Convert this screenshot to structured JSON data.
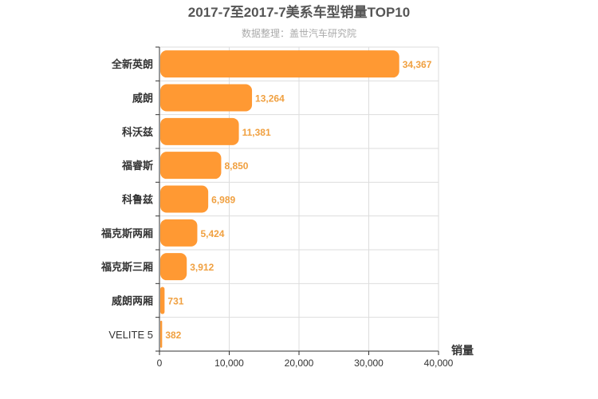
{
  "chart_data": {
    "type": "bar",
    "orientation": "horizontal",
    "title": "2017-7至2017-7美系车型销量TOP10",
    "subtitle": "数据整理：盖世汽车研究院",
    "xlabel": "销量",
    "ylabel": "",
    "categories": [
      "全新英朗",
      "威朗",
      "科沃兹",
      "福睿斯",
      "科鲁兹",
      "福克斯两厢",
      "福克斯三厢",
      "威朗两厢",
      "VELITE 5"
    ],
    "values": [
      34367,
      13264,
      11381,
      8850,
      6989,
      5424,
      3912,
      731,
      382
    ],
    "value_labels": [
      "34,367",
      "13,264",
      "11,381",
      "8,850",
      "6,989",
      "5,424",
      "3,912",
      "731",
      "382"
    ],
    "xlim": [
      0,
      40000
    ],
    "x_ticks": [
      0,
      10000,
      20000,
      30000,
      40000
    ],
    "x_tick_labels": [
      "0",
      "10,000",
      "20,000",
      "30,000",
      "40,000"
    ],
    "grid": true,
    "bar_color": "#ff9933",
    "label_color": "#f0a040"
  }
}
